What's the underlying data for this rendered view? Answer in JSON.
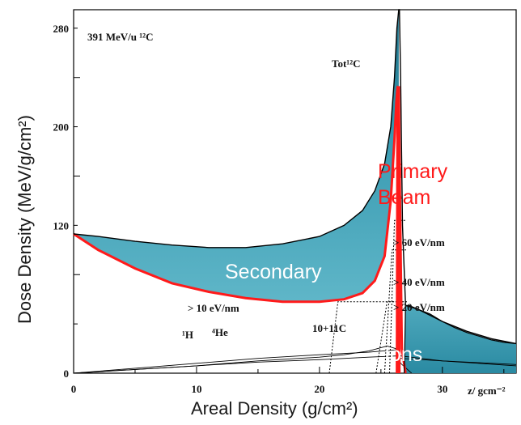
{
  "chart_data": {
    "type": "area",
    "title": "391 MeV/u ¹²C",
    "xlabel": "Areal Density (g/cm²)",
    "ylabel": "Dose Density (MeV/g/cm²)",
    "x_unit_label": "z/ gcm⁻²",
    "xlim": [
      0,
      36
    ],
    "ylim": [
      0,
      295
    ],
    "xticks": [
      0,
      10,
      20,
      30
    ],
    "yticks": [
      0,
      120,
      200,
      280
    ],
    "grid": false,
    "colors": {
      "fill": "#3a9bb2",
      "fill_dark": "#1d6f86",
      "primary": "#ff1a1a",
      "total": "#000000",
      "threshold": "#000000"
    },
    "series": [
      {
        "name": "Tot¹²C",
        "role": "total",
        "x": [
          0,
          2,
          5,
          8,
          11,
          14,
          17,
          20,
          22,
          23.5,
          24.5,
          25.3,
          25.8,
          26.1,
          26.3,
          26.45,
          26.5,
          26.6,
          26.75,
          27.0,
          28,
          30,
          32,
          34,
          36
        ],
        "y": [
          113,
          111,
          107,
          104,
          102,
          102,
          105,
          111,
          120,
          132,
          148,
          170,
          200,
          240,
          280,
          300,
          300,
          240,
          120,
          55,
          52,
          42,
          34,
          28,
          24
        ]
      },
      {
        "name": "Primary Beam",
        "role": "primary",
        "x": [
          0,
          2,
          5,
          8,
          11,
          14,
          17,
          20,
          22,
          23.5,
          24.5,
          25.3,
          25.8,
          26.1,
          26.25,
          26.35,
          26.45,
          26.55,
          26.7,
          27
        ],
        "y": [
          113,
          100,
          85,
          73,
          66,
          61,
          58,
          58,
          60,
          65,
          75,
          95,
          140,
          190,
          220,
          232,
          232,
          140,
          20,
          0
        ]
      },
      {
        "name": "Ions",
        "role": "tail",
        "x": [
          26.9,
          27.0,
          27.3,
          28,
          29,
          30,
          31,
          32,
          33,
          34,
          35,
          36
        ],
        "y": [
          0,
          55,
          55,
          52,
          48,
          42,
          37,
          33,
          30,
          27,
          25,
          24
        ]
      },
      {
        "name": "¹H",
        "role": "fragment",
        "x": [
          0,
          5,
          10,
          15,
          20,
          24,
          26.3,
          26.6,
          30,
          36
        ],
        "y": [
          0,
          3,
          6,
          9,
          11,
          13,
          14,
          12,
          10,
          7
        ]
      },
      {
        "name": "⁴He",
        "role": "fragment",
        "x": [
          0,
          5,
          10,
          15,
          20,
          24,
          26.3,
          26.6,
          30,
          36
        ],
        "y": [
          0,
          4,
          8,
          12,
          15,
          17,
          19,
          14,
          10,
          6
        ]
      },
      {
        "name": "10+11C",
        "role": "fragment",
        "x": [
          0,
          5,
          10,
          15,
          20,
          22,
          24,
          25.5,
          26.2,
          26.6,
          27.5
        ],
        "y": [
          0,
          3,
          6,
          10,
          13,
          15,
          18,
          22,
          20,
          8,
          0
        ]
      }
    ],
    "thresholds": [
      {
        "label": "> 10 eV/nm",
        "x_left": 21.5,
        "y_level": 58,
        "x_bottom": 20.8
      },
      {
        "label": "> 20 eV/nm",
        "x_left": 25.5,
        "y_level": 58,
        "x_bottom": 24.6
      },
      {
        "label": "> 40 eV/nm",
        "x_left": 25.9,
        "y_level": 100,
        "x_bottom": 25.3
      },
      {
        "label": "> 60 eV/nm",
        "x_left": 26.1,
        "y_level": 124,
        "x_bottom": 25.7
      }
    ],
    "annotations": {
      "total": "Tot¹²C",
      "primary_line1": "Primary",
      "primary_line2": "Beam",
      "secondary": "Secondary",
      "ions": "Ions",
      "h": "¹H",
      "he": "⁴He",
      "c": "10+11C"
    }
  }
}
